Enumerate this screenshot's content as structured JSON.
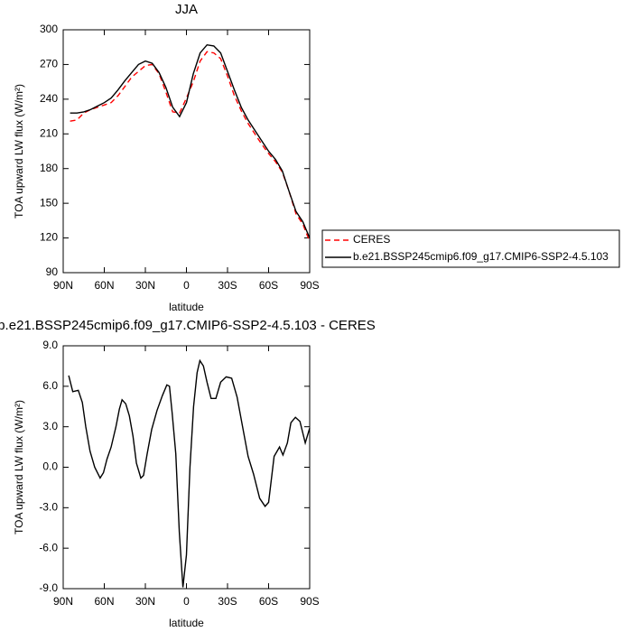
{
  "chart_data": [
    {
      "type": "line",
      "title": "JJA",
      "xlabel": "latitude",
      "ylabel": "TOA upward LW flux (W/m²)",
      "x": [
        85,
        80,
        75,
        70,
        65,
        60,
        55,
        50,
        45,
        40,
        35,
        30,
        25,
        20,
        15,
        10,
        5,
        0,
        -5,
        -10,
        -15,
        -20,
        -25,
        -30,
        -35,
        -40,
        -45,
        -50,
        -55,
        -60,
        -65,
        -70,
        -75,
        -80,
        -85,
        -90
      ],
      "series": [
        {
          "name": "CERES",
          "color": "#ff0000",
          "line_style": "dashed",
          "values": [
            221,
            222,
            228,
            231,
            233,
            235,
            237,
            243,
            251,
            259,
            264,
            269,
            270,
            262,
            246,
            229,
            228,
            241,
            255,
            273,
            281,
            280,
            275,
            260,
            243,
            230,
            219,
            210,
            201,
            193,
            186,
            177,
            160,
            141,
            132,
            117
          ]
        },
        {
          "name": "b.e21.BSSP245cmip6.f09_g17.CMIP6-SSP2-4.5.103",
          "color": "#000000",
          "line_style": "solid",
          "values": [
            228,
            228,
            229,
            231,
            234,
            237,
            241,
            248,
            256,
            263,
            270,
            273,
            271,
            263,
            250,
            233,
            225,
            237,
            262,
            280,
            287,
            286,
            280,
            264,
            248,
            233,
            222,
            213,
            204,
            195,
            188,
            178,
            160,
            143,
            134,
            120
          ]
        }
      ],
      "xlim": [
        90,
        -90
      ],
      "xticks": [
        {
          "value": 90,
          "label": "90N"
        },
        {
          "value": 60,
          "label": "60N"
        },
        {
          "value": 30,
          "label": "30N"
        },
        0,
        {
          "value": -30,
          "label": "30S"
        },
        {
          "value": -60,
          "label": "60S"
        },
        {
          "value": -90,
          "label": "90S"
        }
      ],
      "ylim": [
        90,
        300
      ],
      "yticks": [
        90,
        120,
        150,
        180,
        210,
        240,
        270,
        300
      ],
      "grid": false,
      "legend": "right"
    },
    {
      "type": "line",
      "title": "b.e21.BSSP245cmip6.f09_g17.CMIP6-SSP2-4.5.103 - CERES",
      "xlabel": "latitude",
      "ylabel": "TOA upward LW flux (W/m²)",
      "x": [
        86,
        83,
        79,
        76,
        73.5,
        70.4,
        67,
        63,
        60.6,
        58,
        55,
        51.5,
        49,
        47,
        44.3,
        41.7,
        39,
        36.5,
        33.3,
        31.3,
        28.7,
        25.4,
        21.5,
        17.6,
        14.3,
        12.4,
        10.4,
        7.8,
        5.2,
        2.6,
        0,
        -2.6,
        -5.2,
        -7.8,
        -9.8,
        -12.4,
        -15,
        -18,
        -21.5,
        -25,
        -29,
        -33,
        -37,
        -41,
        -45,
        -49,
        -53.5,
        -57.4,
        -60,
        -64,
        -68,
        -70.5,
        -73.7,
        -76.3,
        -79.6,
        -82.9,
        -86.8,
        -90
      ],
      "values": [
        6.8,
        5.6,
        5.7,
        4.8,
        3.0,
        1.2,
        0.0,
        -0.8,
        -0.4,
        0.6,
        1.5,
        3.0,
        4.3,
        5.0,
        4.7,
        3.8,
        2.3,
        0.3,
        -0.8,
        -0.6,
        1.0,
        2.8,
        4.2,
        5.3,
        6.1,
        6.0,
        4.0,
        1.0,
        -4.8,
        -8.9,
        -6.5,
        0.0,
        4.5,
        7.0,
        7.9,
        7.5,
        6.3,
        5.1,
        5.1,
        6.3,
        6.7,
        6.6,
        5.2,
        3.0,
        0.8,
        -0.5,
        -2.3,
        -2.9,
        -2.6,
        0.8,
        1.5,
        0.9,
        1.8,
        3.3,
        3.7,
        3.4,
        1.8,
        2.9
      ],
      "color": "#000000",
      "line_style": "solid",
      "xlim": [
        90,
        -90
      ],
      "xticks": [
        {
          "value": 90,
          "label": "90N"
        },
        {
          "value": 60,
          "label": "60N"
        },
        {
          "value": 30,
          "label": "30N"
        },
        0,
        {
          "value": -30,
          "label": "30S"
        },
        {
          "value": -60,
          "label": "60S"
        },
        {
          "value": -90,
          "label": "90S"
        }
      ],
      "ylim": [
        -9,
        9
      ],
      "yticks": [
        {
          "value": -9,
          "label": "-9.0"
        },
        {
          "value": -6,
          "label": "-6.0"
        },
        {
          "value": -3,
          "label": "-3.0"
        },
        {
          "value": 0,
          "label": "0.0"
        },
        {
          "value": 3,
          "label": "3.0"
        },
        {
          "value": 6,
          "label": "6.0"
        },
        {
          "value": 9,
          "label": "9.0"
        }
      ],
      "grid": false
    }
  ]
}
